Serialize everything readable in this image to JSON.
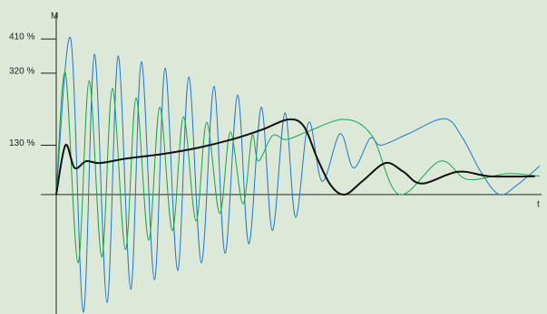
{
  "chart_data": {
    "type": "line",
    "y_label": "M",
    "x_label": "t",
    "xlim": [
      0,
      100
    ],
    "ylim": [
      -315,
      477
    ],
    "yticks": [
      {
        "value": 130,
        "label": "130 %"
      },
      {
        "value": 320,
        "label": "320 %"
      },
      {
        "value": 410,
        "label": "410 %"
      }
    ],
    "series": [
      {
        "color": "#1f78c8",
        "width": 1,
        "x": [
          0,
          3,
          5.6,
          7.9,
          10.5,
          12.8,
          15.4,
          17.6,
          20.3,
          22.5,
          25.1,
          27.4,
          30,
          32.6,
          34.9,
          37.5,
          39.8,
          42.4,
          44.7,
          47.3,
          49.5,
          52.2,
          55,
          58.7,
          61.5,
          64.9,
          67.2,
          72.8,
          80.3,
          84,
          87.8,
          91.6,
          95.3,
          100
        ],
        "values": [
          0,
          410,
          -310,
          370,
          -285,
          365,
          -250,
          350,
          -225,
          333,
          -200,
          310,
          -180,
          285,
          -155,
          262,
          -130,
          230,
          -95,
          215,
          -60,
          190,
          35,
          160,
          70,
          148,
          130,
          160,
          200,
          150,
          60,
          0,
          25,
          75
        ]
      },
      {
        "color": "#1aa34a",
        "width": 1,
        "x": [
          0,
          1.9,
          4.5,
          6.8,
          9.4,
          11.6,
          14.3,
          16.5,
          19.1,
          21.4,
          24,
          26.3,
          28.9,
          31.1,
          33.8,
          36,
          38.6,
          40.5,
          41.8,
          44.7,
          47.6,
          52.2,
          59.7,
          65.3,
          70.9,
          79.4,
          85,
          93.4,
          100
        ],
        "values": [
          0,
          320,
          -180,
          300,
          -165,
          280,
          -145,
          255,
          -120,
          230,
          -95,
          205,
          -70,
          190,
          -50,
          165,
          -25,
          155,
          88,
          155,
          145,
          167,
          198,
          155,
          0,
          88,
          40,
          55,
          48
        ]
      },
      {
        "color": "#111111",
        "width": 2,
        "x": [
          0,
          1.9,
          3.8,
          6.2,
          9,
          14.6,
          22.1,
          29.6,
          37.1,
          42.8,
          48,
          51.2,
          54,
          56.8,
          59.7,
          63.4,
          68.1,
          71.8,
          75.6,
          83.1,
          89.7,
          99
        ],
        "values": [
          0,
          130,
          70,
          88,
          83,
          95,
          107,
          124,
          148,
          172,
          198,
          180,
          95,
          24,
          0,
          36,
          83,
          60,
          29,
          60,
          48,
          48
        ]
      }
    ]
  }
}
